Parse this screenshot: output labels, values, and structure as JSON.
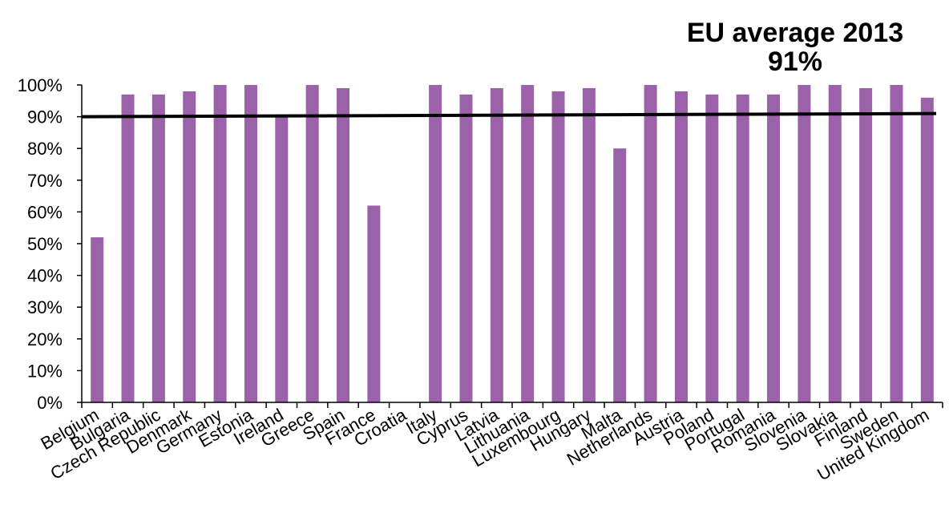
{
  "chart_data": {
    "type": "bar",
    "categories": [
      "Belgium",
      "Bulgaria",
      "Czech Republic",
      "Denmark",
      "Germany",
      "Estonia",
      "Ireland",
      "Greece",
      "Spain",
      "France",
      "Croatia",
      "Italy",
      "Cyprus",
      "Latvia",
      "Lithuania",
      "Luxembourg",
      "Hungary",
      "Malta",
      "Netherlands",
      "Austria",
      "Poland",
      "Portugal",
      "Romania",
      "Slovenia",
      "Slovakia",
      "Finland",
      "Sweden",
      "United Kingdom"
    ],
    "values": [
      0.52,
      0.97,
      0.97,
      0.98,
      1.0,
      1.0,
      0.9,
      1.0,
      0.99,
      0.62,
      null,
      1.0,
      0.97,
      0.99,
      1.0,
      0.98,
      0.99,
      0.8,
      1.0,
      0.98,
      0.97,
      0.97,
      0.97,
      1.0,
      1.0,
      0.99,
      1.0,
      0.96
    ],
    "ylim": [
      0,
      1
    ],
    "yticks": [
      "0%",
      "10%",
      "20%",
      "30%",
      "40%",
      "50%",
      "60%",
      "70%",
      "80%",
      "90%",
      "100%"
    ],
    "reference_line": {
      "start": 0.9,
      "end": 0.91
    },
    "annotation": {
      "line1": "EU average 2013",
      "line2": "91%"
    },
    "bar_color": "#9b61a9",
    "line_color": "#000000",
    "grid": false,
    "legend": "none"
  }
}
